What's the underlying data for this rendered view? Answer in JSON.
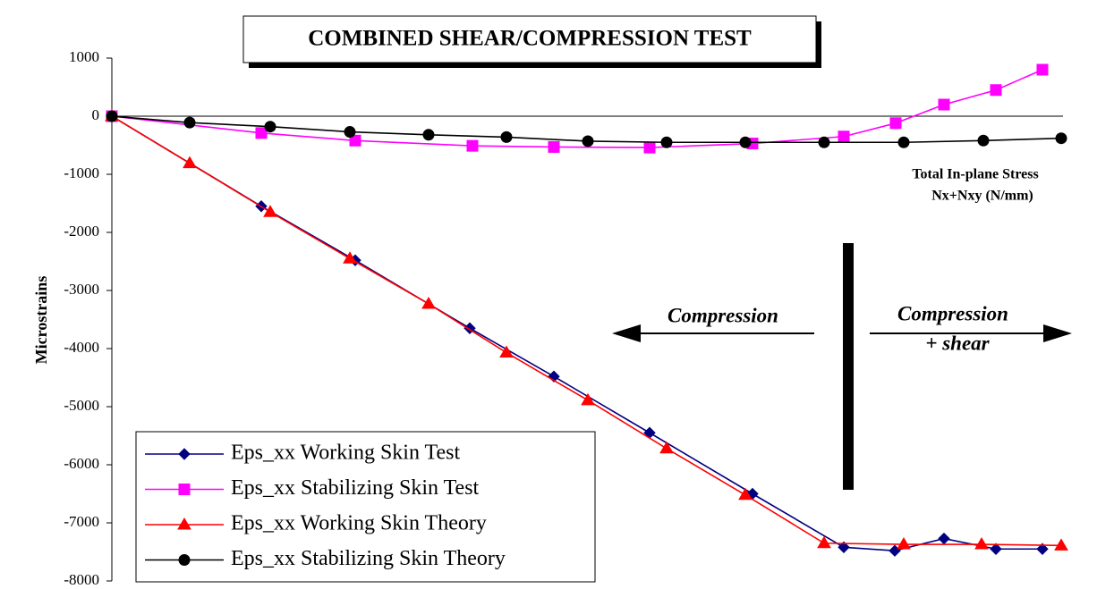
{
  "chart_data": {
    "type": "line",
    "title": "COMBINED SHEAR/COMPRESSION TEST",
    "y_label": "Microstrains",
    "x_label": [
      "Total In-plane Stress",
      "Nx+Nxy (N/mm)"
    ],
    "annotations": [
      "Compression",
      "Compression",
      "+ shear"
    ],
    "xlim": [
      0,
      1063
    ],
    "ylim": [
      -8000,
      1000
    ],
    "yticks": [
      1000,
      0,
      -1000,
      -2000,
      -3000,
      -4000,
      -5000,
      -6000,
      -7000,
      -8000
    ],
    "series": [
      {
        "name": "Eps_xx Working Skin Test",
        "color": "#000080",
        "marker": "diamond",
        "x": [
          0,
          167,
          272,
          400,
          494,
          601,
          716,
          818,
          875,
          930,
          988,
          1040
        ],
        "values": [
          0,
          -1550,
          -2480,
          -3650,
          -4480,
          -5450,
          -6500,
          -7420,
          -7480,
          -7270,
          -7450,
          -7450
        ]
      },
      {
        "name": "Eps_xx Stabilizing Skin Test",
        "color": "#ff00ff",
        "marker": "square",
        "x": [
          0,
          167,
          272,
          403,
          494,
          601,
          716,
          818,
          876,
          930,
          988,
          1040
        ],
        "values": [
          0,
          -290,
          -420,
          -510,
          -530,
          -540,
          -470,
          -350,
          -120,
          200,
          450,
          800
        ]
      },
      {
        "name": "Eps_xx Working Skin Theory",
        "color": "#ff0000",
        "marker": "triangle",
        "x": [
          0,
          87,
          177,
          266,
          354,
          441,
          532,
          620,
          708,
          796,
          885,
          972,
          1061
        ],
        "values": [
          0,
          -810,
          -1650,
          -2450,
          -3230,
          -4070,
          -4890,
          -5720,
          -6520,
          -7350,
          -7370,
          -7370,
          -7390
        ]
      },
      {
        "name": "Eps_xx Stabilizing Skin Theory",
        "color": "#000000",
        "marker": "circle",
        "x": [
          0,
          87,
          177,
          266,
          354,
          441,
          532,
          620,
          708,
          796,
          885,
          974,
          1061
        ],
        "values": [
          0,
          -110,
          -180,
          -270,
          -320,
          -360,
          -430,
          -450,
          -450,
          -450,
          -450,
          -420,
          -380
        ]
      }
    ]
  }
}
